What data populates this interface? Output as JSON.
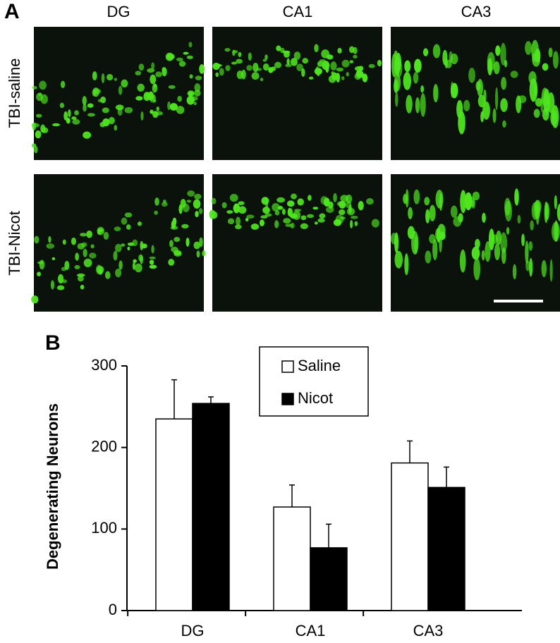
{
  "figure": {
    "panel_a": {
      "label": "A",
      "columns": [
        "DG",
        "CA1",
        "CA3"
      ],
      "rows": [
        "TBI-saline",
        "TBI-Nicot"
      ]
    },
    "panel_b": {
      "label": "B"
    }
  },
  "chart_data": {
    "type": "bar",
    "y_label": "Degenerating  Neurons",
    "categories": [
      "DG",
      "CA1",
      "CA3"
    ],
    "series": [
      {
        "name": "Saline",
        "color": "#ffffff",
        "values": [
          235,
          127,
          181
        ],
        "errors": [
          48,
          27,
          27
        ]
      },
      {
        "name": "Nicot",
        "color": "#000000",
        "values": [
          254,
          77,
          151
        ],
        "errors": [
          8,
          29,
          25
        ]
      }
    ],
    "ylim": [
      0,
      300
    ],
    "yticks": [
      0,
      100,
      200,
      300
    ],
    "grid": false,
    "legend": "top"
  }
}
